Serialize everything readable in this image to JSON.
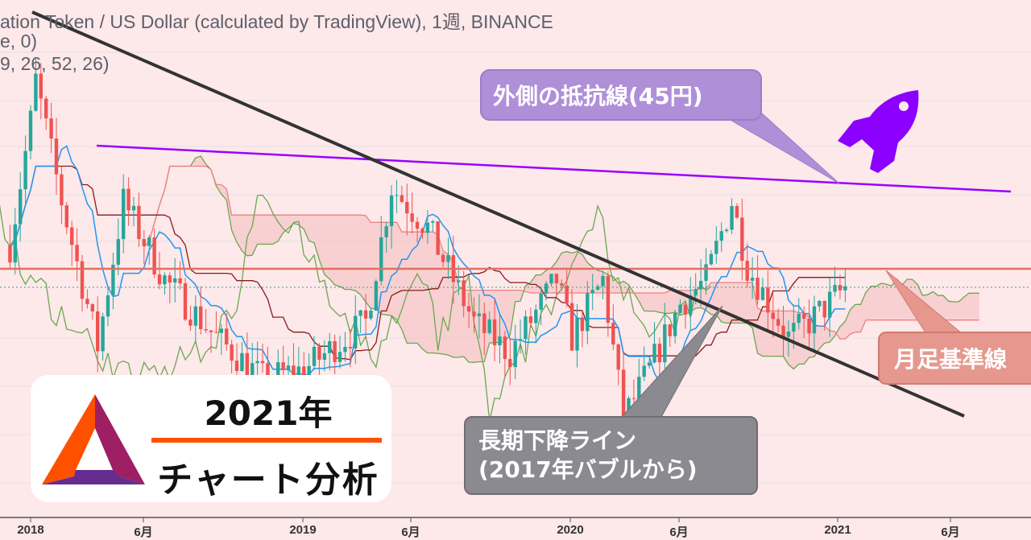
{
  "header": {
    "symbol_line": "ation Token / US Dollar (calculated by TradingView), 1週, BINANCE",
    "indicator_line_1": "e, 0)",
    "indicator_line_2": "9, 26, 52, 26)"
  },
  "annotations": {
    "resistance_label": "外側の抵抗線(45円)",
    "downtrend_label_1": "長期下降ライン",
    "downtrend_label_2": "(2017年バブルから)",
    "monthly_base_label": "月足基準線"
  },
  "logo_card": {
    "title": "2021年",
    "subtitle": "チャート分析",
    "logo": "basic-attention-token-triangle"
  },
  "icons": {
    "rocket": "rocket-icon"
  },
  "colors": {
    "background": "#fde8ea",
    "up_candle": "#26a69a",
    "down_candle": "#ef5350",
    "tenkan": "#2196f3",
    "kijun": "#8b1a1a",
    "span": "#6aa84f",
    "resistance": "#9900ff",
    "downtrend": "#333333",
    "monthly_base": "#e07060",
    "rocket": "#8b00ff"
  },
  "chart_data": {
    "type": "candlestick",
    "title": "",
    "timeframe": "1週",
    "exchange": "BINANCE",
    "x_ticks": [
      "2018",
      "6月",
      "2019",
      "6月",
      "2020",
      "6月",
      "2021",
      "6月"
    ],
    "y_scale": "log",
    "close_path": [
      {
        "date": "2017-12-04",
        "price": 30
      },
      {
        "date": "2018-01-01",
        "price": 58
      },
      {
        "date": "2018-01-08",
        "price": 72
      },
      {
        "date": "2018-02-12",
        "price": 38
      },
      {
        "date": "2018-04-02",
        "price": 17.6
      },
      {
        "date": "2018-05-07",
        "price": 38
      },
      {
        "date": "2018-07-02",
        "price": 25
      },
      {
        "date": "2018-09-10",
        "price": 18.4
      },
      {
        "date": "2018-11-12",
        "price": 14.8
      },
      {
        "date": "2019-01-07",
        "price": 15.5
      },
      {
        "date": "2019-04-01",
        "price": 20
      },
      {
        "date": "2019-05-06",
        "price": 41
      },
      {
        "date": "2019-06-24",
        "price": 33
      },
      {
        "date": "2019-08-26",
        "price": 20
      },
      {
        "date": "2019-10-14",
        "price": 16.9
      },
      {
        "date": "2019-12-16",
        "price": 25
      },
      {
        "date": "2020-01-06",
        "price": 18.4
      },
      {
        "date": "2020-02-17",
        "price": 25
      },
      {
        "date": "2020-03-16",
        "price": 12
      },
      {
        "date": "2020-04-20",
        "price": 15.5
      },
      {
        "date": "2020-06-01",
        "price": 22
      },
      {
        "date": "2020-07-06",
        "price": 25
      },
      {
        "date": "2020-08-10",
        "price": 38
      },
      {
        "date": "2020-08-31",
        "price": 27
      },
      {
        "date": "2020-10-26",
        "price": 18.4
      },
      {
        "date": "2020-11-23",
        "price": 20
      },
      {
        "date": "2021-01-11",
        "price": 24
      }
    ],
    "lines": [
      {
        "label": "外側の抵抗線(45円)",
        "kind": "trendline",
        "value": 45
      },
      {
        "label": "月足基準線",
        "kind": "horizontal"
      },
      {
        "label": "長期下降ライン",
        "kind": "trendline"
      }
    ]
  }
}
